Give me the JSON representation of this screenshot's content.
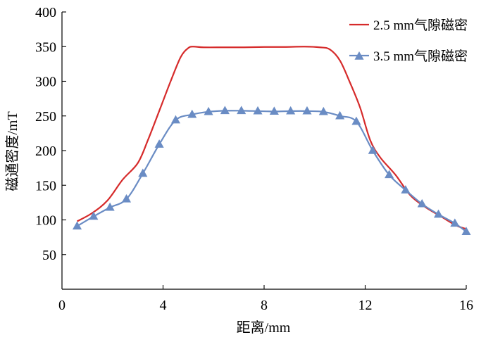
{
  "chart_data": {
    "type": "line",
    "xlabel": "距离/mm",
    "ylabel": "磁通密度/mT",
    "xlim": [
      0,
      16
    ],
    "ylim": [
      0,
      400
    ],
    "x_ticks": [
      "0",
      "4",
      "8",
      "12",
      "16"
    ],
    "y_ticks": [
      "50",
      "100",
      "150",
      "200",
      "250",
      "300",
      "350",
      "400"
    ],
    "grid": false,
    "legend_position": "top-right",
    "series": [
      {
        "name": "2.5 mm气隙磁密",
        "color": "#d62b2b",
        "marker": "none",
        "x": [
          0.6,
          1.2,
          1.8,
          2.4,
          3.0,
          3.4,
          3.9,
          4.3,
          4.7,
          5.0,
          5.2,
          5.6,
          6.4,
          7.2,
          8.0,
          8.8,
          9.6,
          10.2,
          10.6,
          11.0,
          11.4,
          11.8,
          12.2,
          12.6,
          13.2,
          13.8,
          14.4,
          15.0,
          15.6,
          16.0
        ],
        "y": [
          98,
          110,
          128,
          158,
          182,
          215,
          262,
          300,
          335,
          348,
          350,
          349,
          349,
          349,
          349.5,
          349.5,
          350,
          349,
          346,
          330,
          298,
          262,
          215,
          190,
          165,
          135,
          118,
          105,
          92,
          87
        ]
      },
      {
        "name": "3.5 mm气隙磁密",
        "color": "#6a8cc4",
        "marker": "triangle",
        "x": [
          0.6,
          1.25,
          1.9,
          2.55,
          3.2,
          3.85,
          4.5,
          5.15,
          5.8,
          6.45,
          7.1,
          7.75,
          8.4,
          9.05,
          9.7,
          10.35,
          11.0,
          11.65,
          12.3,
          12.95,
          13.6,
          14.25,
          14.9,
          15.55,
          16.0
        ],
        "y": [
          91,
          105,
          118,
          130,
          167,
          209,
          244,
          252,
          256,
          257.5,
          257.5,
          257,
          256.5,
          257,
          257,
          256,
          250,
          242,
          200,
          165,
          143,
          123,
          108,
          95,
          83
        ]
      }
    ]
  }
}
